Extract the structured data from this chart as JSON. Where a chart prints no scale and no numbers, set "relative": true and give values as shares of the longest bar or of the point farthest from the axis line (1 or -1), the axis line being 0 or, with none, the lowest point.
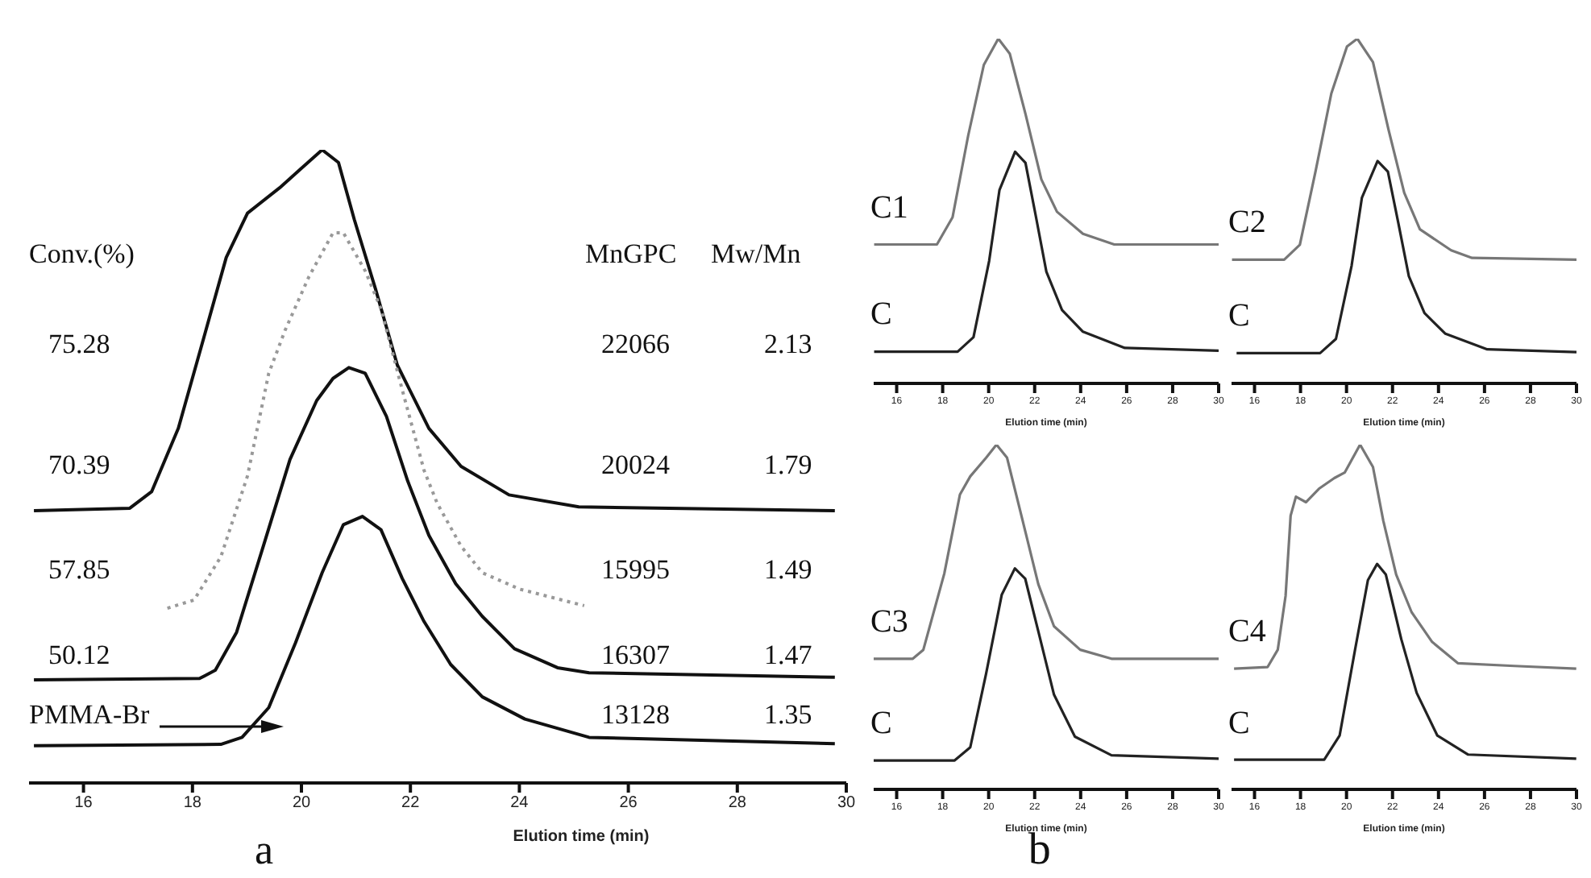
{
  "chart_data": [
    {
      "type": "line",
      "relative": true,
      "xlabel": "Elution time (min)",
      "xlim": [
        15,
        30
      ],
      "xticks": [
        16,
        18,
        20,
        22,
        24,
        26,
        28,
        30
      ],
      "grid": false,
      "legend": false,
      "marker": "none",
      "annotations": [
        "Conv.(%)",
        "MnGPC",
        "Mw/Mn",
        "75.28",
        "22066",
        "2.13",
        "70.39",
        "20024",
        "1.79",
        "57.85",
        "15995",
        "1.49",
        "50.12",
        "16307",
        "1.47",
        "PMMA-Br",
        "13128",
        "1.35",
        "a"
      ],
      "series": [
        {
          "color": "#111111",
          "line_style": "solid",
          "x": [
            15.09,
            16.85,
            17.25,
            17.74,
            18.23,
            18.62,
            19.01,
            19.6,
            19.99,
            20.38,
            20.68,
            20.97,
            21.36,
            21.76,
            22.34,
            22.93,
            23.81,
            25.09,
            29.79
          ],
          "values": [
            0.43,
            0.434,
            0.46,
            0.56,
            0.71,
            0.83,
            0.9,
            0.94,
            0.97,
            1,
            0.98,
            0.89,
            0.78,
            0.66,
            0.56,
            0.5,
            0.455,
            0.436,
            0.43
          ]
        },
        {
          "color": "#999999",
          "line_style": "dotted",
          "x": [
            17.54,
            18.03,
            18.52,
            19.01,
            19.4,
            19.7,
            20.14,
            20.58,
            20.77,
            21.17,
            21.46,
            21.85,
            22.25,
            22.49,
            22.93,
            23.32,
            24.01,
            25.19
          ],
          "values": [
            0.276,
            0.289,
            0.357,
            0.485,
            0.647,
            0.715,
            0.8,
            0.869,
            0.869,
            0.809,
            0.749,
            0.621,
            0.494,
            0.442,
            0.374,
            0.332,
            0.306,
            0.28
          ]
        },
        {
          "color": "#111111",
          "line_style": "solid",
          "x": [
            15.09,
            18.13,
            18.42,
            18.81,
            19.3,
            19.79,
            20.28,
            20.58,
            20.87,
            21.17,
            21.56,
            21.95,
            22.34,
            22.83,
            23.32,
            23.91,
            24.7,
            25.28,
            29.79
          ],
          "values": [
            0.163,
            0.165,
            0.178,
            0.238,
            0.374,
            0.511,
            0.604,
            0.639,
            0.656,
            0.647,
            0.579,
            0.477,
            0.391,
            0.315,
            0.263,
            0.212,
            0.182,
            0.174,
            0.167
          ]
        },
        {
          "color": "#111111",
          "line_style": "solid",
          "x": [
            15.09,
            18.52,
            18.91,
            19.4,
            19.89,
            20.38,
            20.77,
            21.12,
            21.46,
            21.85,
            22.25,
            22.74,
            23.32,
            24.1,
            25.28,
            29.79
          ],
          "values": [
            0.059,
            0.061,
            0.072,
            0.119,
            0.221,
            0.332,
            0.408,
            0.421,
            0.4,
            0.323,
            0.255,
            0.187,
            0.136,
            0.101,
            0.072,
            0.062
          ]
        }
      ]
    },
    {
      "type": "line",
      "relative": true,
      "xlabel": "Elution time (min)",
      "xlim": [
        15,
        30
      ],
      "xticks": [
        16,
        18,
        20,
        22,
        24,
        26,
        28,
        30
      ],
      "grid": false,
      "legend": false,
      "marker": "none",
      "series": [
        {
          "name": "C1",
          "color": "#777777",
          "x": [
            15.02,
            17.75,
            18.43,
            19.11,
            19.79,
            20.42,
            20.92,
            21.6,
            22.29,
            22.97,
            24.1,
            25.46,
            30
          ],
          "values": [
            0.403,
            0.403,
            0.482,
            0.719,
            0.924,
            1,
            0.956,
            0.782,
            0.592,
            0.498,
            0.434,
            0.403,
            0.403
          ]
        },
        {
          "name": "C",
          "color": "#222222",
          "x": [
            15.02,
            18.65,
            19.34,
            20.02,
            20.47,
            21.15,
            21.6,
            22.06,
            22.51,
            23.19,
            24.1,
            25.92,
            30
          ],
          "values": [
            0.092,
            0.092,
            0.134,
            0.355,
            0.561,
            0.672,
            0.64,
            0.482,
            0.324,
            0.213,
            0.15,
            0.103,
            0.095
          ]
        }
      ]
    },
    {
      "type": "line",
      "relative": true,
      "xlabel": "Elution time (min)",
      "xlim": [
        15,
        30
      ],
      "xticks": [
        16,
        18,
        20,
        22,
        24,
        26,
        28,
        30
      ],
      "grid": false,
      "legend": false,
      "marker": "none",
      "series": [
        {
          "name": "C2",
          "color": "#777777",
          "x": [
            15.02,
            17.29,
            17.97,
            18.65,
            19.34,
            20.02,
            20.47,
            21.15,
            21.83,
            22.51,
            23.19,
            24.55,
            25.46,
            30
          ],
          "values": [
            0.359,
            0.359,
            0.402,
            0.614,
            0.841,
            0.977,
            1,
            0.932,
            0.735,
            0.553,
            0.447,
            0.386,
            0.364,
            0.359
          ]
        },
        {
          "name": "C",
          "color": "#222222",
          "x": [
            15.22,
            18.85,
            19.54,
            20.22,
            20.67,
            21.35,
            21.8,
            22.26,
            22.71,
            23.39,
            24.3,
            26.12,
            30
          ],
          "values": [
            0.088,
            0.088,
            0.129,
            0.341,
            0.539,
            0.645,
            0.614,
            0.463,
            0.311,
            0.204,
            0.144,
            0.099,
            0.091
          ]
        }
      ]
    },
    {
      "type": "line",
      "relative": true,
      "xlabel": "Elution time (min)",
      "xlim": [
        15,
        30
      ],
      "xticks": [
        16,
        18,
        20,
        22,
        24,
        26,
        28,
        30
      ],
      "grid": false,
      "legend": false,
      "marker": "none",
      "annotations": [
        "b"
      ],
      "series": [
        {
          "name": "C3",
          "color": "#777777",
          "x": [
            15,
            16.7,
            17.16,
            18.07,
            18.75,
            19.2,
            19.89,
            20.34,
            20.8,
            21.48,
            22.16,
            22.84,
            23.98,
            25.34,
            30
          ],
          "values": [
            0.379,
            0.379,
            0.405,
            0.626,
            0.855,
            0.908,
            0.962,
            1,
            0.962,
            0.779,
            0.595,
            0.473,
            0.405,
            0.379,
            0.379
          ]
        },
        {
          "name": "C",
          "color": "#222222",
          "x": [
            15,
            18.52,
            19.2,
            19.89,
            20.57,
            21.14,
            21.59,
            22.16,
            22.84,
            23.75,
            25.34,
            30
          ],
          "values": [
            0.084,
            0.084,
            0.122,
            0.336,
            0.565,
            0.641,
            0.611,
            0.458,
            0.275,
            0.153,
            0.099,
            0.089
          ]
        }
      ]
    },
    {
      "type": "line",
      "relative": true,
      "xlabel": "Elution time (min)",
      "xlim": [
        15,
        30
      ],
      "xticks": [
        16,
        18,
        20,
        22,
        24,
        26,
        28,
        30
      ],
      "grid": false,
      "legend": false,
      "marker": "none",
      "series": [
        {
          "name": "C4",
          "color": "#777777",
          "x": [
            15.11,
            16.57,
            17.01,
            17.35,
            17.57,
            17.8,
            18.24,
            18.8,
            19.47,
            19.92,
            20.59,
            21.15,
            21.6,
            22.16,
            22.83,
            23.72,
            24.84,
            27.3,
            29.99
          ],
          "values": [
            0.35,
            0.355,
            0.405,
            0.561,
            0.794,
            0.849,
            0.833,
            0.872,
            0.903,
            0.919,
            1,
            0.935,
            0.779,
            0.623,
            0.514,
            0.428,
            0.366,
            0.358,
            0.35
          ]
        },
        {
          "name": "C",
          "color": "#222222",
          "x": [
            15.11,
            19.03,
            19.7,
            20.37,
            20.93,
            21.33,
            21.71,
            22.38,
            23.05,
            23.95,
            25.29,
            29.99
          ],
          "values": [
            0.086,
            0.086,
            0.156,
            0.405,
            0.607,
            0.654,
            0.623,
            0.436,
            0.28,
            0.156,
            0.101,
            0.089
          ]
        }
      ]
    }
  ]
}
